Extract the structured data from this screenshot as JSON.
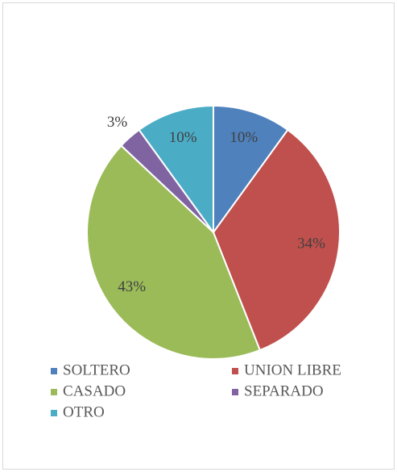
{
  "chart_data": {
    "type": "pie",
    "categories": [
      "SOLTERO",
      "UNION LIBRE",
      "CASADO",
      "SEPARADO",
      "OTRO"
    ],
    "values": [
      10,
      34,
      43,
      3,
      10
    ],
    "value_labels": [
      "10%",
      "34%",
      "43%",
      "3%",
      "10%"
    ],
    "colors": [
      "#4f81bd",
      "#c0504d",
      "#9bbb59",
      "#8064a2",
      "#4bacc6"
    ],
    "legend": "bottom"
  }
}
